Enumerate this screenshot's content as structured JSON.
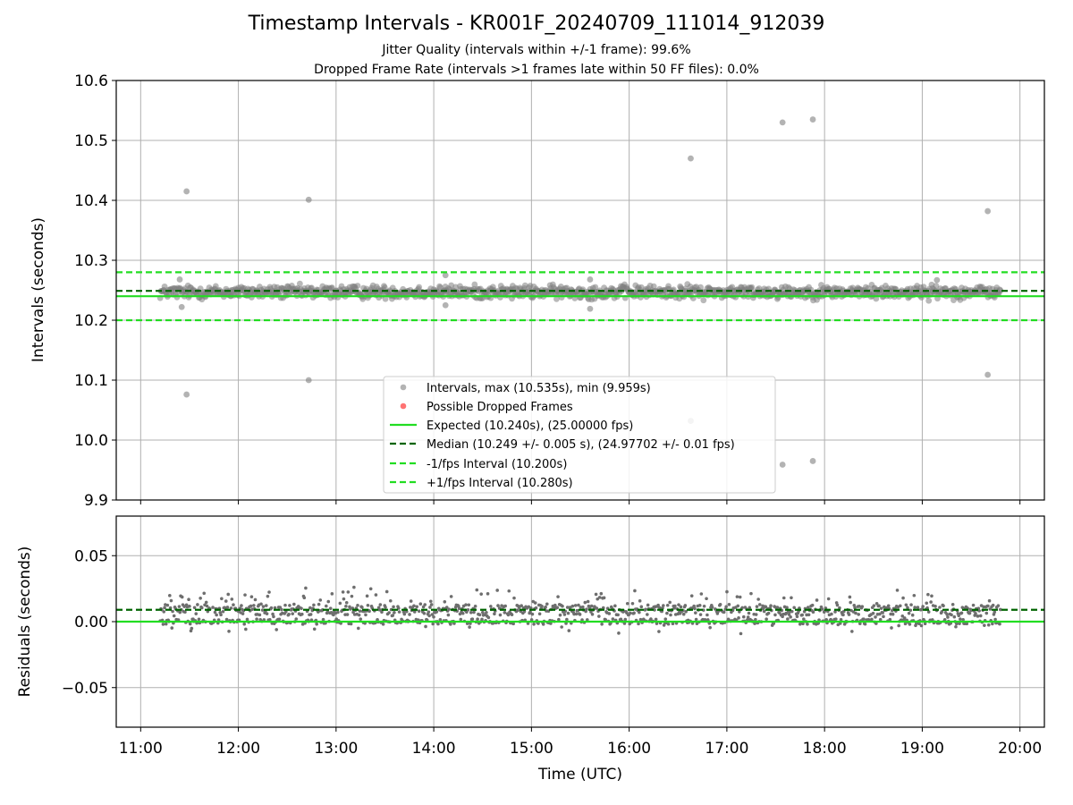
{
  "figure": {
    "title": "Timestamp Intervals - KR001F_20240709_111014_912039",
    "subtitle_1": "Jitter Quality (intervals within +/-1 frame): 99.6%",
    "subtitle_2": "Dropped Frame Rate (intervals >1 frames late within 50 FF files): 0.0%"
  },
  "colors": {
    "points": "#808080",
    "dropped": "#ff0000",
    "expected": "#22dd22",
    "median": "#006400",
    "grid": "#b0b0b0"
  },
  "chart_data": [
    {
      "type": "scatter",
      "panel": "intervals",
      "ylabel": "Intervals (seconds)",
      "ylim": [
        9.9,
        10.6
      ],
      "yticks": [
        "10.6",
        "10.5",
        "10.4",
        "10.3",
        "10.2",
        "10.1",
        "10.0",
        "9.9"
      ],
      "ytick_values": [
        10.6,
        10.5,
        10.4,
        10.3,
        10.2,
        10.1,
        10.0,
        9.9
      ],
      "xlim_hours": [
        10.75,
        20.25
      ],
      "data_range_hours": [
        11.2,
        19.8
      ],
      "band_center": 10.247,
      "band_halfwidth": 0.012,
      "outliers": [
        {
          "x": 11.47,
          "y": 10.415
        },
        {
          "x": 11.47,
          "y": 10.076
        },
        {
          "x": 12.72,
          "y": 10.401
        },
        {
          "x": 12.72,
          "y": 10.1
        },
        {
          "x": 16.63,
          "y": 10.47
        },
        {
          "x": 16.63,
          "y": 10.032
        },
        {
          "x": 17.57,
          "y": 10.53
        },
        {
          "x": 17.57,
          "y": 9.959
        },
        {
          "x": 17.88,
          "y": 10.535
        },
        {
          "x": 17.88,
          "y": 9.965
        },
        {
          "x": 19.67,
          "y": 10.382
        },
        {
          "x": 19.67,
          "y": 10.109
        },
        {
          "x": 11.4,
          "y": 10.268
        },
        {
          "x": 11.42,
          "y": 10.222
        },
        {
          "x": 14.12,
          "y": 10.275
        },
        {
          "x": 14.12,
          "y": 10.225
        },
        {
          "x": 15.6,
          "y": 10.268
        },
        {
          "x": 15.6,
          "y": 10.219
        },
        {
          "x": 19.15,
          "y": 10.267
        }
      ],
      "lines": {
        "expected": 10.24,
        "median": 10.249,
        "minus_1_fps": 10.2,
        "plus_1_fps": 10.28
      },
      "legend": {
        "placement": "lower center",
        "entries": [
          "Intervals, max (10.535s), min (9.959s)",
          "Possible Dropped Frames",
          "Expected (10.240s), (25.00000 fps)",
          "Median (10.249 +/- 0.005 s), (24.97702 +/- 0.01 fps)",
          "-1/fps Interval (10.200s)",
          "+1/fps Interval (10.280s)"
        ]
      }
    },
    {
      "type": "scatter",
      "panel": "residuals",
      "ylabel": "Residuals (seconds)",
      "xlabel": "Time (UTC)",
      "ylim": [
        -0.08,
        0.08
      ],
      "yticks": [
        "0.05",
        "0.00",
        "−0.05"
      ],
      "ytick_values": [
        0.05,
        0.0,
        -0.05
      ],
      "xticks": [
        "11:00",
        "12:00",
        "13:00",
        "14:00",
        "15:00",
        "16:00",
        "17:00",
        "18:00",
        "19:00",
        "20:00"
      ],
      "xtick_hours": [
        11,
        12,
        13,
        14,
        15,
        16,
        17,
        18,
        19,
        20
      ],
      "xlim_hours": [
        10.75,
        20.25
      ],
      "lines": {
        "zero": 0.0,
        "median_offset": 0.009
      },
      "residual_center": 0.009,
      "residual_spread": 0.012
    }
  ]
}
